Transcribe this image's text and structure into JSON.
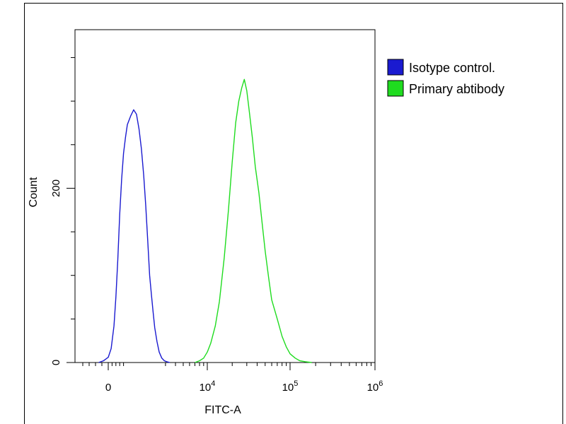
{
  "chart_data": {
    "type": "line",
    "title": "",
    "xlabel": "FITC-A",
    "ylabel": "Count",
    "x_scale": "biexponential",
    "x_ticks": [
      {
        "value": 0,
        "label": "0",
        "sup": ""
      },
      {
        "value": 10000,
        "label": "10",
        "sup": "4"
      },
      {
        "value": 100000,
        "label": "10",
        "sup": "5"
      },
      {
        "value": 1000000,
        "label": "10",
        "sup": "6"
      }
    ],
    "y_ticks": [
      {
        "value": 0,
        "label": "0"
      },
      {
        "value": 200,
        "label": "200"
      }
    ],
    "ylim": [
      0,
      382
    ],
    "grid": false,
    "legend_position": "top-right",
    "series": [
      {
        "name": "Isotype control.",
        "color": "#1a1ad0",
        "x": [
          -300,
          -150,
          0,
          150,
          300,
          400,
          500,
          600,
          700,
          800,
          900,
          1000,
          1100,
          1200,
          1300,
          1400,
          1500,
          1600,
          1700,
          1800,
          1900,
          2000,
          2100,
          2200,
          2350,
          2500,
          2700,
          2900,
          3100,
          3400
        ],
        "y": [
          0,
          2,
          6,
          16,
          42,
          75,
          118,
          170,
          210,
          240,
          258,
          273,
          283,
          290,
          285,
          268,
          245,
          215,
          180,
          140,
          100,
          78,
          58,
          40,
          24,
          12,
          5,
          2,
          1,
          0
        ]
      },
      {
        "name": "Primary abtibody",
        "color": "#1fdc1f",
        "x": [
          7000,
          8000,
          9000,
          10000,
          11000,
          12500,
          14000,
          16000,
          18000,
          20000,
          22000,
          24000,
          26000,
          28000,
          30000,
          32000,
          35000,
          38000,
          42000,
          46000,
          50000,
          55000,
          60000,
          70000,
          80000,
          90000,
          100000,
          115000,
          130000,
          150000,
          180000
        ],
        "y": [
          0,
          2,
          5,
          12,
          22,
          42,
          70,
          120,
          175,
          230,
          275,
          300,
          315,
          325,
          312,
          290,
          258,
          225,
          195,
          160,
          128,
          98,
          72,
          50,
          30,
          18,
          10,
          5,
          2,
          1,
          0
        ]
      }
    ]
  }
}
